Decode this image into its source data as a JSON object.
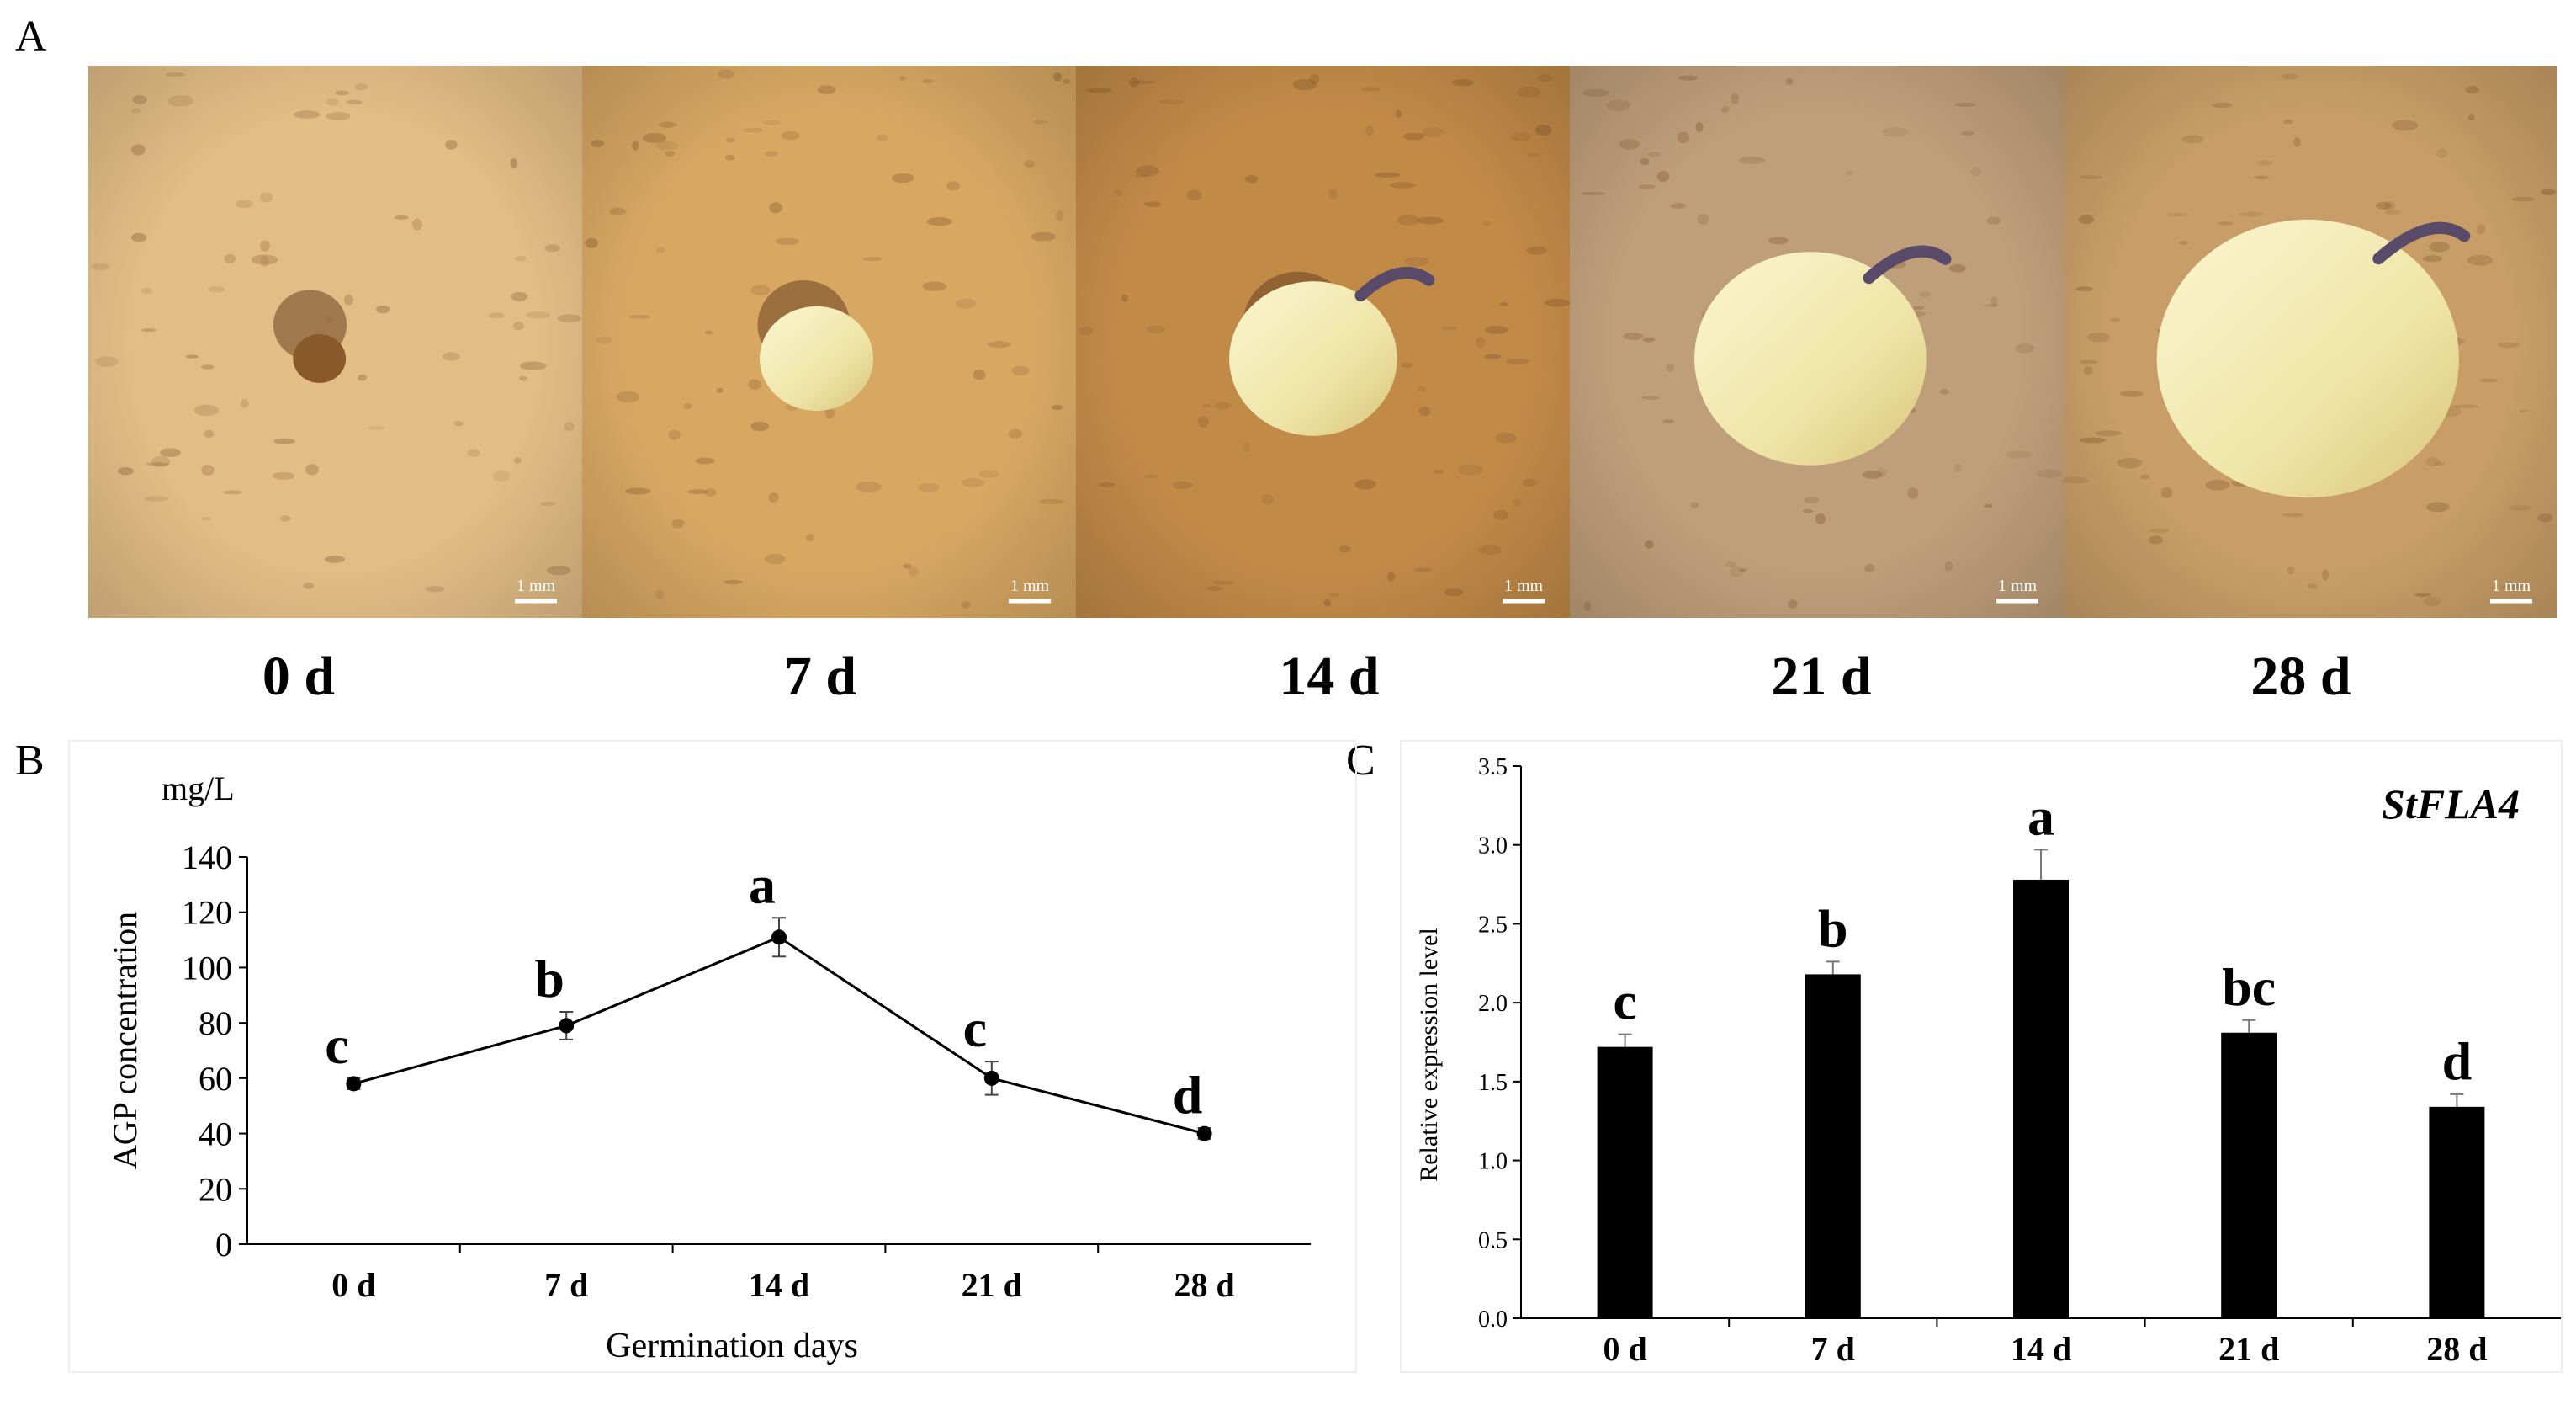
{
  "panel_labels": {
    "a": "A",
    "b": "B",
    "c": "C"
  },
  "photos": {
    "days": [
      "0 d",
      "7 d",
      "14 d",
      "21 d",
      "28 d"
    ],
    "scale_bar": "1 mm",
    "tuber_growth": [
      0.06,
      0.25,
      0.42,
      0.62,
      0.84
    ],
    "colors": {
      "skin": [
        "#e2bd86",
        "#d8a762",
        "#c28a47",
        "#bf9f7a",
        "#c89d67"
      ],
      "sprout": "#f1ebb8"
    }
  },
  "chart_data": [
    {
      "type": "line",
      "categories": [
        "0 d",
        "7 d",
        "14 d",
        "21 d",
        "28 d"
      ],
      "values": [
        58,
        79,
        111,
        60,
        40
      ],
      "errors": [
        2,
        5,
        7,
        6,
        2
      ],
      "letters": [
        "c",
        "b",
        "a",
        "c",
        "d"
      ],
      "unit": "mg/L",
      "ylabel": "AGP concentration",
      "xlabel": "Germination days",
      "ylim": [
        0,
        140
      ],
      "yticks": [
        "0",
        "20",
        "40",
        "60",
        "80",
        "100",
        "120",
        "140"
      ],
      "grid": false,
      "color": "#000000"
    },
    {
      "type": "bar",
      "title": "StFLA4",
      "categories": [
        "0 d",
        "7 d",
        "14 d",
        "21 d",
        "28 d"
      ],
      "values": [
        1.72,
        2.18,
        2.78,
        1.81,
        1.34
      ],
      "errors": [
        0.08,
        0.08,
        0.19,
        0.08,
        0.08
      ],
      "letters": [
        "c",
        "b",
        "a",
        "bc",
        "d"
      ],
      "ylabel": "Relative expression level",
      "ylim": [
        0,
        3.5
      ],
      "yticks": [
        "0.0",
        "0.5",
        "1.0",
        "1.5",
        "2.0",
        "2.5",
        "3.0",
        "3.5"
      ],
      "grid": false,
      "color": "#000000"
    }
  ]
}
